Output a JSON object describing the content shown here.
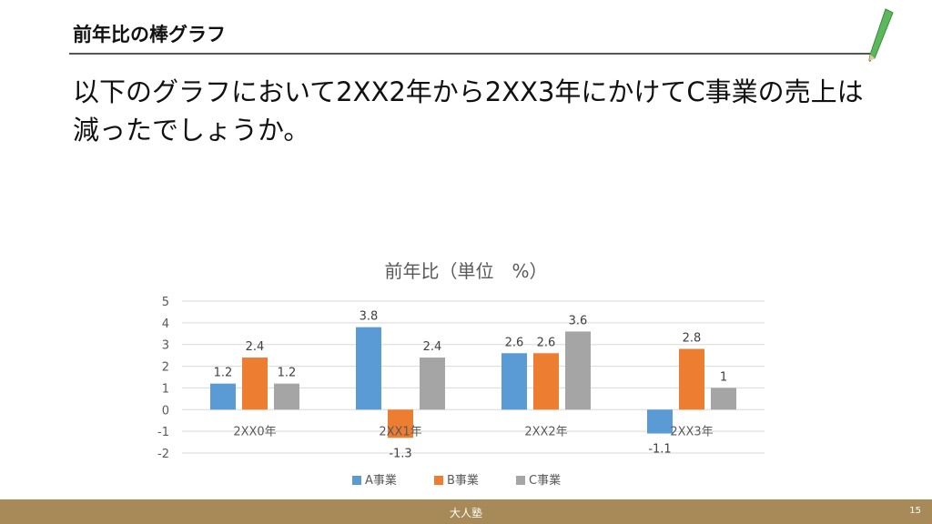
{
  "slide": {
    "title": "前年比の棒グラフ",
    "question": "以下のグラフにおいて2XX2年から2XX3年にかけてC事業の売上は減ったでしょうか。",
    "footer_brand": "大人塾",
    "page_number": "15"
  },
  "colors": {
    "series_a": "#5b9bd5",
    "series_b": "#ed7d31",
    "series_c": "#a5a5a5",
    "gridline": "#d9d9d9",
    "footer": "#a88a58"
  },
  "icons": [
    "pencil-icon"
  ],
  "chart_data": {
    "type": "bar",
    "title": "前年比（単位　%）",
    "xlabel": "",
    "ylabel": "",
    "categories": [
      "2XX0年",
      "2XX1年",
      "2XX2年",
      "2XX3年"
    ],
    "series": [
      {
        "name": "A事業",
        "values": [
          1.2,
          3.8,
          2.6,
          -1.1
        ]
      },
      {
        "name": "B事業",
        "values": [
          2.4,
          -1.3,
          2.6,
          2.8
        ]
      },
      {
        "name": "C事業",
        "values": [
          1.2,
          2.4,
          3.6,
          1
        ]
      }
    ],
    "ylim": [
      -2,
      5
    ],
    "yticks": [
      5,
      4,
      3,
      2,
      1,
      0,
      -1,
      -2
    ],
    "grid": true,
    "legend": "bottom",
    "data_labels": true
  }
}
